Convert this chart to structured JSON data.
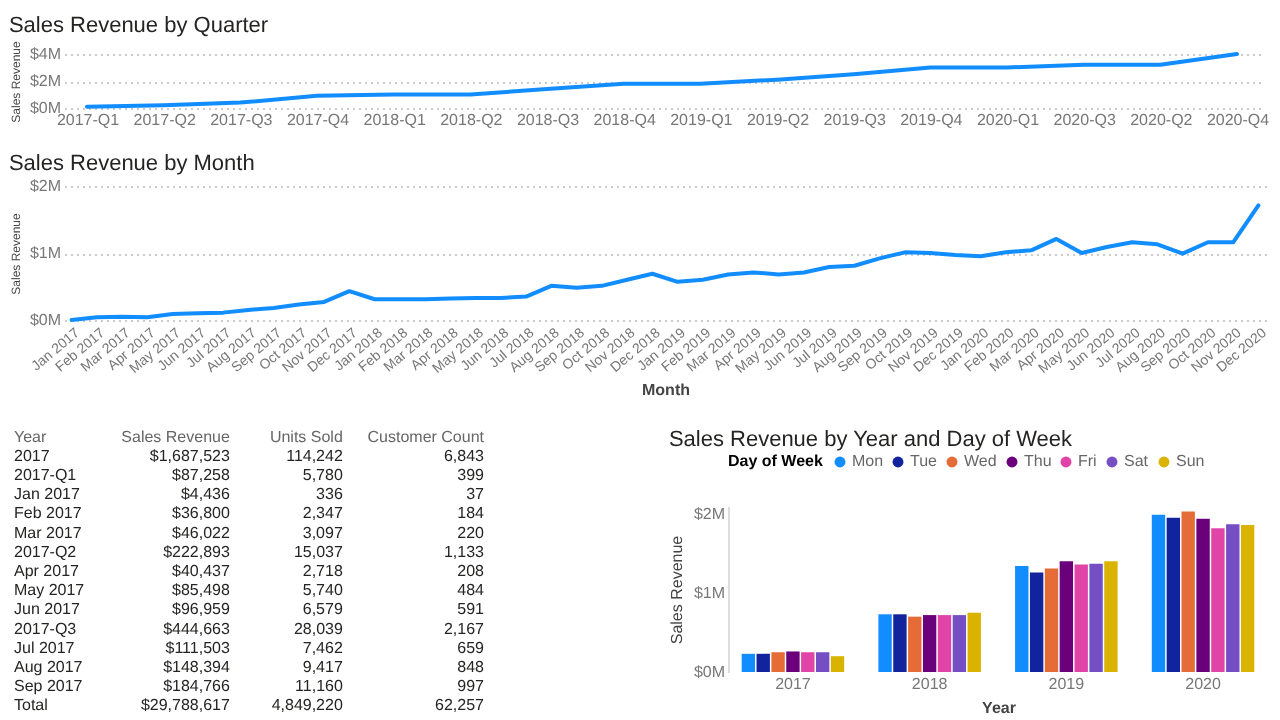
{
  "chart_data": [
    {
      "type": "line",
      "title": "Sales Revenue by Quarter",
      "ylabel": "Sales Revenue",
      "categories": [
        "2017-Q1",
        "2017-Q2",
        "2017-Q3",
        "2017-Q4",
        "2018-Q1",
        "2018-Q2",
        "2018-Q3",
        "2018-Q4",
        "2019-Q1",
        "2019-Q2",
        "2019-Q3",
        "2019-Q4",
        "2020-Q1",
        "2020-Q3",
        "2020-Q2",
        "2020-Q4"
      ],
      "series": [
        {
          "color": "#118dff",
          "values": [
            0.1,
            0.2,
            0.4,
            0.9,
            1.0,
            1.0,
            1.4,
            1.8,
            1.8,
            2.1,
            2.5,
            3.0,
            3.0,
            3.2,
            3.2,
            4.0
          ]
        }
      ],
      "ylim": [
        0,
        4
      ],
      "yticks": [
        {
          "value": 0,
          "label": "$0M"
        },
        {
          "value": 2,
          "label": "$2M"
        },
        {
          "value": 4,
          "label": "$4M"
        }
      ],
      "grid": "y"
    },
    {
      "type": "line",
      "title": "Sales Revenue by Month",
      "xlabel": "Month",
      "ylabel": "Sales Revenue",
      "categories": [
        "Jan 2017",
        "Feb 2017",
        "Mar 2017",
        "Apr 2017",
        "May 2017",
        "Jun 2017",
        "Jul 2017",
        "Aug 2017",
        "Sep 2017",
        "Oct 2017",
        "Nov 2017",
        "Dec 2017",
        "Jan 2018",
        "Feb 2018",
        "Mar 2018",
        "Apr 2018",
        "May 2018",
        "Jun 2018",
        "Jul 2018",
        "Aug 2018",
        "Sep 2018",
        "Oct 2018",
        "Nov 2018",
        "Dec 2018",
        "Jan 2019",
        "Feb 2019",
        "Mar 2019",
        "Apr 2019",
        "May 2019",
        "Jun 2019",
        "Jul 2019",
        "Aug 2019",
        "Sep 2019",
        "Oct 2019",
        "Nov 2019",
        "Dec 2019",
        "Jan 2020",
        "Feb 2020",
        "Mar 2020",
        "Apr 2020",
        "May 2020",
        "Jun 2020",
        "Jul 2020",
        "Aug 2020",
        "Sep 2020",
        "Oct 2020",
        "Nov 2020",
        "Dec 2020"
      ],
      "series": [
        {
          "color": "#118dff",
          "values": [
            0.0,
            0.04,
            0.05,
            0.04,
            0.09,
            0.1,
            0.11,
            0.15,
            0.18,
            0.23,
            0.27,
            0.43,
            0.31,
            0.31,
            0.31,
            0.32,
            0.33,
            0.33,
            0.35,
            0.51,
            0.48,
            0.51,
            0.6,
            0.69,
            0.57,
            0.6,
            0.68,
            0.71,
            0.68,
            0.71,
            0.79,
            0.81,
            0.92,
            1.01,
            1.0,
            0.97,
            0.95,
            1.01,
            1.04,
            1.21,
            1.0,
            1.09,
            1.16,
            1.13,
            0.99,
            1.16,
            1.16,
            1.71
          ]
        }
      ],
      "ylim": [
        0,
        2
      ],
      "yticks": [
        {
          "value": 0,
          "label": "$0M"
        },
        {
          "value": 1,
          "label": "$1M"
        },
        {
          "value": 2,
          "label": "$2M"
        }
      ],
      "grid": "y"
    },
    {
      "type": "other",
      "categories": [
        "Year",
        "Sales Revenue",
        "Units Sold",
        "Customer Count"
      ],
      "y_categories": [
        "2017",
        "2017-Q1",
        "Jan 2017",
        "Feb 2017",
        "Mar 2017",
        "2017-Q2",
        "Apr 2017",
        "May 2017",
        "Jun 2017",
        "2017-Q3",
        "Jul 2017",
        "Aug 2017",
        "Sep 2017",
        "Total"
      ],
      "cell_labels": [
        [
          "$1,687,523",
          "114,242",
          "6,843"
        ],
        [
          "$87,258",
          "5,780",
          "399"
        ],
        [
          "$4,436",
          "336",
          "37"
        ],
        [
          "$36,800",
          "2,347",
          "184"
        ],
        [
          "$46,022",
          "3,097",
          "220"
        ],
        [
          "$222,893",
          "15,037",
          "1,133"
        ],
        [
          "$40,437",
          "2,718",
          "208"
        ],
        [
          "$85,498",
          "5,740",
          "484"
        ],
        [
          "$96,959",
          "6,579",
          "591"
        ],
        [
          "$444,663",
          "28,039",
          "2,167"
        ],
        [
          "$111,503",
          "7,462",
          "659"
        ],
        [
          "$148,394",
          "9,417",
          "848"
        ],
        [
          "$184,766",
          "11,160",
          "997"
        ],
        [
          "$29,788,617",
          "4,849,220",
          "62,257"
        ]
      ]
    },
    {
      "type": "bar",
      "title": "Sales Revenue by Year and Day of Week",
      "xlabel": "Year",
      "ylabel": "Sales Revenue",
      "legend_title": "Day of Week",
      "legend": "top",
      "categories": [
        "2017",
        "2018",
        "2019",
        "2020"
      ],
      "series": [
        {
          "name": "Mon",
          "color": "#118dff",
          "values": [
            0.23,
            0.73,
            1.34,
            1.99
          ]
        },
        {
          "name": "Tue",
          "color": "#12239e",
          "values": [
            0.23,
            0.73,
            1.26,
            1.95
          ]
        },
        {
          "name": "Wed",
          "color": "#e66c37",
          "values": [
            0.25,
            0.7,
            1.31,
            2.03
          ]
        },
        {
          "name": "Thu",
          "color": "#6b007b",
          "values": [
            0.26,
            0.72,
            1.4,
            1.94
          ]
        },
        {
          "name": "Fri",
          "color": "#e044a7",
          "values": [
            0.25,
            0.72,
            1.36,
            1.82
          ]
        },
        {
          "name": "Sat",
          "color": "#744ec2",
          "values": [
            0.25,
            0.72,
            1.37,
            1.87
          ]
        },
        {
          "name": "Sun",
          "color": "#d9b300",
          "values": [
            0.2,
            0.75,
            1.4,
            1.86
          ]
        }
      ],
      "ylim": [
        0,
        2.1
      ],
      "yticks": [
        {
          "value": 0,
          "label": "$0M"
        },
        {
          "value": 1,
          "label": "$1M"
        },
        {
          "value": 2,
          "label": "$2M"
        }
      ]
    }
  ]
}
